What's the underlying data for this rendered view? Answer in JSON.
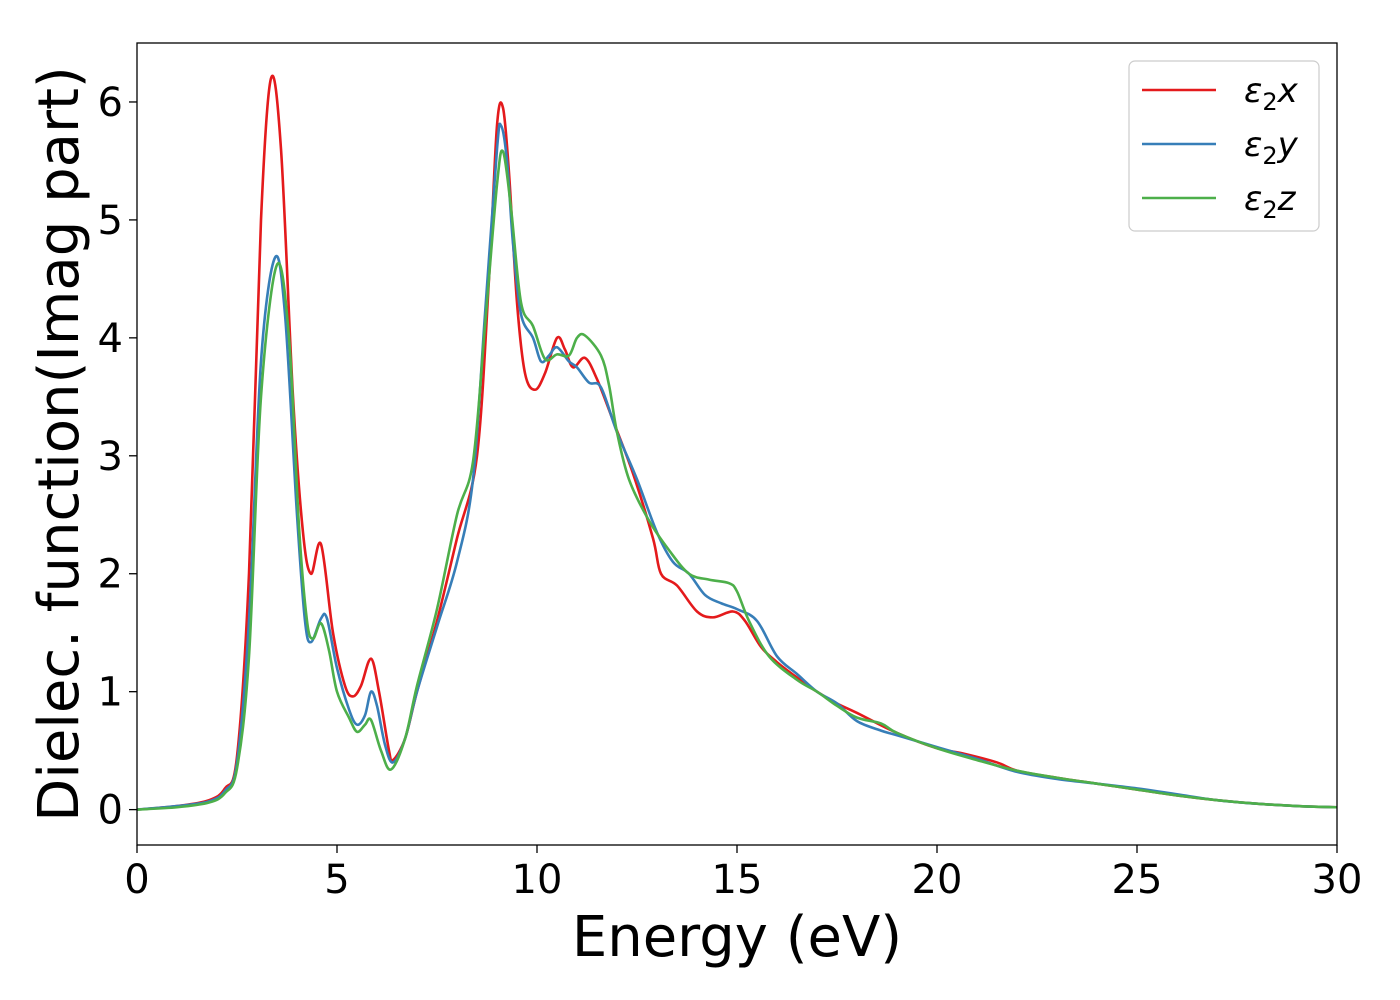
{
  "chart_data": {
    "type": "line",
    "title": "",
    "xlabel": "Energy (eV)",
    "ylabel": "Dielec. function(Imag part)",
    "xlim": [
      0,
      30
    ],
    "ylim": [
      -0.3,
      6.5
    ],
    "xticks": [
      0,
      5,
      10,
      15,
      20,
      25,
      30
    ],
    "yticks": [
      0,
      1,
      2,
      3,
      4,
      5,
      6
    ],
    "grid": false,
    "legend_position": "top-right",
    "series": [
      {
        "name": "ε2x",
        "legend": {
          "base": "ε",
          "sub": "2",
          "suffix": "x"
        },
        "color": "#e41a1c",
        "points": [
          [
            0,
            0
          ],
          [
            1,
            0.03
          ],
          [
            1.8,
            0.08
          ],
          [
            2.2,
            0.18
          ],
          [
            2.5,
            0.45
          ],
          [
            2.8,
            2.0
          ],
          [
            3.1,
            5.0
          ],
          [
            3.35,
            6.2
          ],
          [
            3.6,
            5.6
          ],
          [
            3.9,
            3.5
          ],
          [
            4.15,
            2.35
          ],
          [
            4.35,
            2.0
          ],
          [
            4.6,
            2.25
          ],
          [
            4.9,
            1.5
          ],
          [
            5.2,
            1.05
          ],
          [
            5.4,
            0.96
          ],
          [
            5.6,
            1.05
          ],
          [
            5.85,
            1.28
          ],
          [
            6.05,
            1.0
          ],
          [
            6.3,
            0.5
          ],
          [
            6.4,
            0.42
          ],
          [
            6.7,
            0.6
          ],
          [
            7.0,
            1.0
          ],
          [
            7.5,
            1.6
          ],
          [
            8.0,
            2.3
          ],
          [
            8.5,
            3.0
          ],
          [
            8.8,
            4.5
          ],
          [
            9.0,
            5.8
          ],
          [
            9.15,
            5.95
          ],
          [
            9.3,
            5.4
          ],
          [
            9.5,
            4.3
          ],
          [
            9.7,
            3.7
          ],
          [
            9.95,
            3.56
          ],
          [
            10.2,
            3.7
          ],
          [
            10.5,
            4.0
          ],
          [
            10.7,
            3.9
          ],
          [
            10.9,
            3.75
          ],
          [
            11.2,
            3.83
          ],
          [
            11.5,
            3.65
          ],
          [
            11.9,
            3.3
          ],
          [
            12.4,
            2.85
          ],
          [
            12.9,
            2.3
          ],
          [
            13.1,
            2.0
          ],
          [
            13.5,
            1.9
          ],
          [
            14.0,
            1.68
          ],
          [
            14.4,
            1.63
          ],
          [
            14.9,
            1.68
          ],
          [
            15.2,
            1.6
          ],
          [
            15.6,
            1.38
          ],
          [
            16.0,
            1.25
          ],
          [
            16.5,
            1.12
          ],
          [
            17.0,
            1.0
          ],
          [
            17.5,
            0.9
          ],
          [
            18.0,
            0.82
          ],
          [
            19.0,
            0.65
          ],
          [
            20.0,
            0.52
          ],
          [
            20.6,
            0.48
          ],
          [
            21.5,
            0.4
          ],
          [
            22.0,
            0.33
          ],
          [
            23.0,
            0.27
          ],
          [
            24.0,
            0.22
          ],
          [
            25.0,
            0.17
          ],
          [
            26.0,
            0.12
          ],
          [
            27.0,
            0.08
          ],
          [
            28.0,
            0.05
          ],
          [
            29.0,
            0.03
          ],
          [
            30.0,
            0.02
          ]
        ]
      },
      {
        "name": "ε2y",
        "legend": {
          "base": "ε",
          "sub": "2",
          "suffix": "y"
        },
        "color": "#377eb8",
        "points": [
          [
            0,
            0
          ],
          [
            1,
            0.03
          ],
          [
            1.8,
            0.07
          ],
          [
            2.2,
            0.16
          ],
          [
            2.5,
            0.4
          ],
          [
            2.8,
            1.6
          ],
          [
            3.1,
            3.8
          ],
          [
            3.45,
            4.68
          ],
          [
            3.7,
            4.2
          ],
          [
            4.0,
            2.5
          ],
          [
            4.2,
            1.6
          ],
          [
            4.35,
            1.42
          ],
          [
            4.6,
            1.62
          ],
          [
            4.75,
            1.62
          ],
          [
            5.0,
            1.2
          ],
          [
            5.3,
            0.85
          ],
          [
            5.5,
            0.72
          ],
          [
            5.7,
            0.8
          ],
          [
            5.85,
            1.0
          ],
          [
            6.0,
            0.88
          ],
          [
            6.2,
            0.55
          ],
          [
            6.4,
            0.4
          ],
          [
            6.7,
            0.6
          ],
          [
            7.0,
            1.0
          ],
          [
            7.5,
            1.55
          ],
          [
            8.0,
            2.1
          ],
          [
            8.4,
            2.8
          ],
          [
            8.7,
            4.2
          ],
          [
            9.0,
            5.6
          ],
          [
            9.1,
            5.8
          ],
          [
            9.25,
            5.5
          ],
          [
            9.4,
            4.8
          ],
          [
            9.6,
            4.2
          ],
          [
            9.9,
            4.0
          ],
          [
            10.1,
            3.8
          ],
          [
            10.3,
            3.85
          ],
          [
            10.5,
            3.92
          ],
          [
            10.8,
            3.8
          ],
          [
            11.0,
            3.75
          ],
          [
            11.3,
            3.62
          ],
          [
            11.6,
            3.58
          ],
          [
            12.0,
            3.2
          ],
          [
            12.5,
            2.8
          ],
          [
            13.0,
            2.35
          ],
          [
            13.4,
            2.1
          ],
          [
            13.8,
            2.0
          ],
          [
            14.2,
            1.82
          ],
          [
            14.6,
            1.75
          ],
          [
            15.0,
            1.7
          ],
          [
            15.5,
            1.6
          ],
          [
            16.0,
            1.3
          ],
          [
            16.5,
            1.15
          ],
          [
            17.0,
            1.0
          ],
          [
            17.5,
            0.9
          ],
          [
            18.0,
            0.75
          ],
          [
            18.6,
            0.67
          ],
          [
            19.0,
            0.63
          ],
          [
            20.0,
            0.53
          ],
          [
            21.0,
            0.43
          ],
          [
            22.0,
            0.32
          ],
          [
            23.0,
            0.26
          ],
          [
            24.0,
            0.22
          ],
          [
            25.0,
            0.18
          ],
          [
            26.0,
            0.13
          ],
          [
            27.0,
            0.08
          ],
          [
            28.0,
            0.05
          ],
          [
            29.0,
            0.03
          ],
          [
            30.0,
            0.02
          ]
        ]
      },
      {
        "name": "ε2z",
        "legend": {
          "base": "ε",
          "sub": "2",
          "suffix": "z"
        },
        "color": "#4daf4a",
        "points": [
          [
            0,
            0
          ],
          [
            1,
            0.02
          ],
          [
            1.8,
            0.06
          ],
          [
            2.2,
            0.14
          ],
          [
            2.5,
            0.35
          ],
          [
            2.8,
            1.3
          ],
          [
            3.1,
            3.5
          ],
          [
            3.5,
            4.62
          ],
          [
            3.8,
            4.0
          ],
          [
            4.05,
            2.4
          ],
          [
            4.25,
            1.6
          ],
          [
            4.4,
            1.45
          ],
          [
            4.6,
            1.58
          ],
          [
            4.8,
            1.35
          ],
          [
            5.0,
            1.0
          ],
          [
            5.3,
            0.78
          ],
          [
            5.5,
            0.66
          ],
          [
            5.7,
            0.72
          ],
          [
            5.85,
            0.76
          ],
          [
            6.1,
            0.5
          ],
          [
            6.35,
            0.34
          ],
          [
            6.7,
            0.6
          ],
          [
            7.0,
            1.05
          ],
          [
            7.5,
            1.7
          ],
          [
            8.0,
            2.5
          ],
          [
            8.4,
            2.95
          ],
          [
            8.7,
            4.1
          ],
          [
            9.0,
            5.3
          ],
          [
            9.15,
            5.58
          ],
          [
            9.35,
            5.1
          ],
          [
            9.6,
            4.3
          ],
          [
            9.9,
            4.1
          ],
          [
            10.2,
            3.82
          ],
          [
            10.5,
            3.86
          ],
          [
            10.8,
            3.85
          ],
          [
            11.0,
            4.0
          ],
          [
            11.2,
            4.02
          ],
          [
            11.6,
            3.85
          ],
          [
            11.8,
            3.6
          ],
          [
            12.0,
            3.2
          ],
          [
            12.3,
            2.8
          ],
          [
            12.8,
            2.45
          ],
          [
            13.3,
            2.2
          ],
          [
            13.8,
            2.0
          ],
          [
            14.3,
            1.95
          ],
          [
            14.8,
            1.92
          ],
          [
            15.0,
            1.85
          ],
          [
            15.3,
            1.6
          ],
          [
            15.8,
            1.3
          ],
          [
            16.5,
            1.1
          ],
          [
            17.0,
            1.0
          ],
          [
            17.5,
            0.88
          ],
          [
            18.0,
            0.78
          ],
          [
            18.6,
            0.73
          ],
          [
            19.0,
            0.65
          ],
          [
            20.0,
            0.52
          ],
          [
            21.0,
            0.42
          ],
          [
            22.0,
            0.33
          ],
          [
            23.0,
            0.27
          ],
          [
            24.0,
            0.22
          ],
          [
            25.0,
            0.17
          ],
          [
            26.0,
            0.12
          ],
          [
            27.0,
            0.08
          ],
          [
            28.0,
            0.05
          ],
          [
            29.0,
            0.03
          ],
          [
            30.0,
            0.02
          ]
        ]
      }
    ]
  }
}
